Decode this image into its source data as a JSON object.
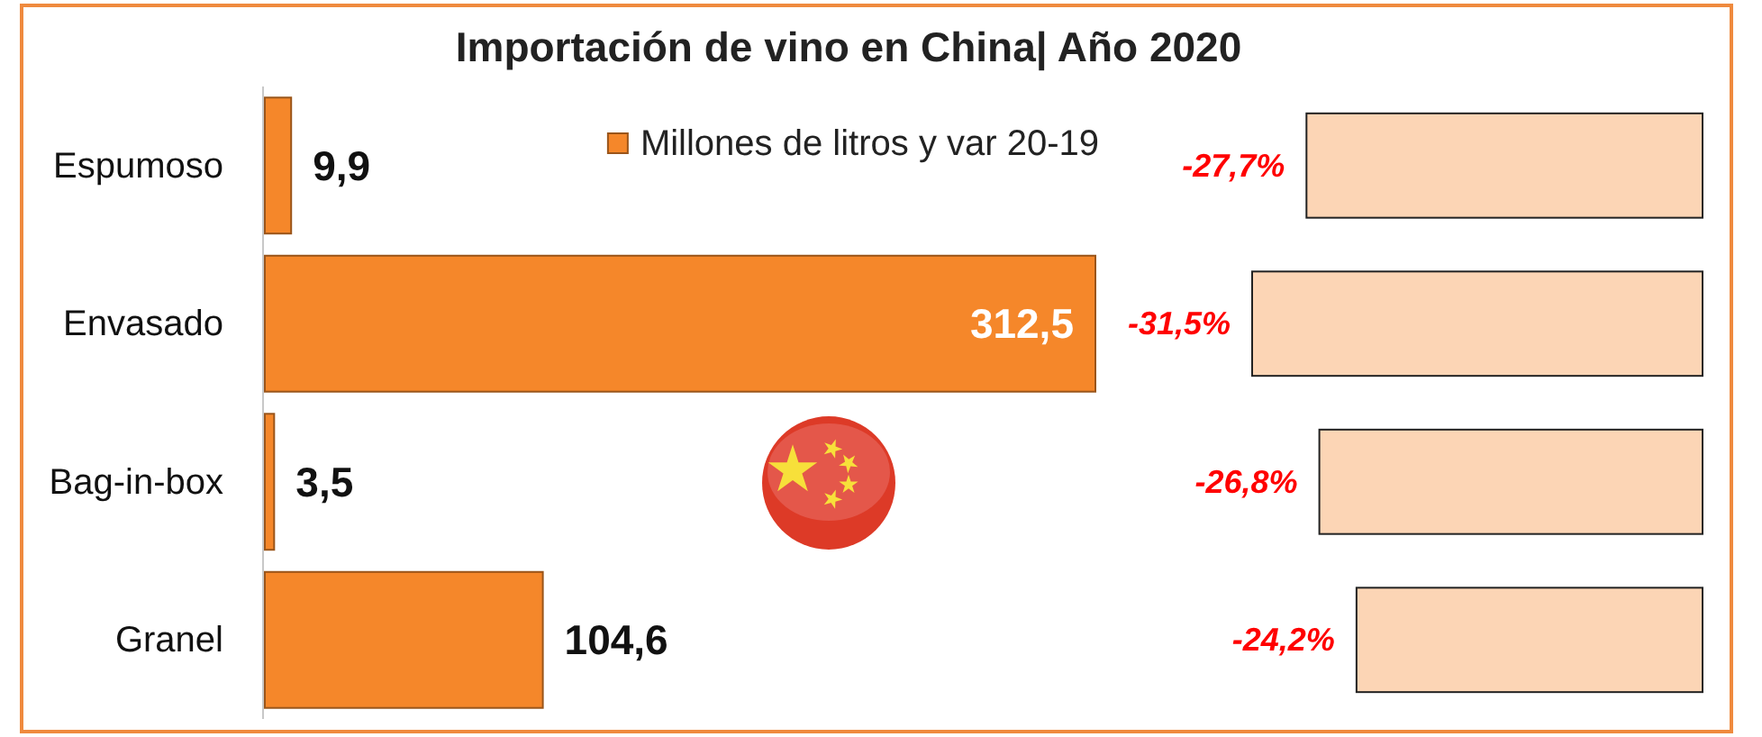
{
  "chart_data": [
    {
      "type": "bar",
      "orientation": "horizontal",
      "title": "Importación de vino en China| Año 2020",
      "categories": [
        "Espumoso",
        "Envasado",
        "Bag-in-box",
        "Granel"
      ],
      "series": [
        {
          "name": "Millones de litros y var 20-19",
          "color": "#f5872a",
          "values": [
            9.9,
            312.5,
            3.5,
            104.6
          ],
          "value_labels": [
            "9,9",
            "312,5",
            "3,5",
            "104,6"
          ]
        }
      ],
      "legend": "top right",
      "tick_labels": "y"
    },
    {
      "type": "bar",
      "orientation": "horizontal",
      "categories": [
        null,
        null,
        null,
        null
      ],
      "series": [
        {
          "color": "#fcd5b5",
          "values": [
            -27.7,
            -31.5,
            -26.8,
            -24.2
          ],
          "value_labels": [
            "-27,7%",
            "-31,5%",
            "-26,8%",
            "-24,2%"
          ]
        }
      ],
      "tick_labels": false
    }
  ]
}
